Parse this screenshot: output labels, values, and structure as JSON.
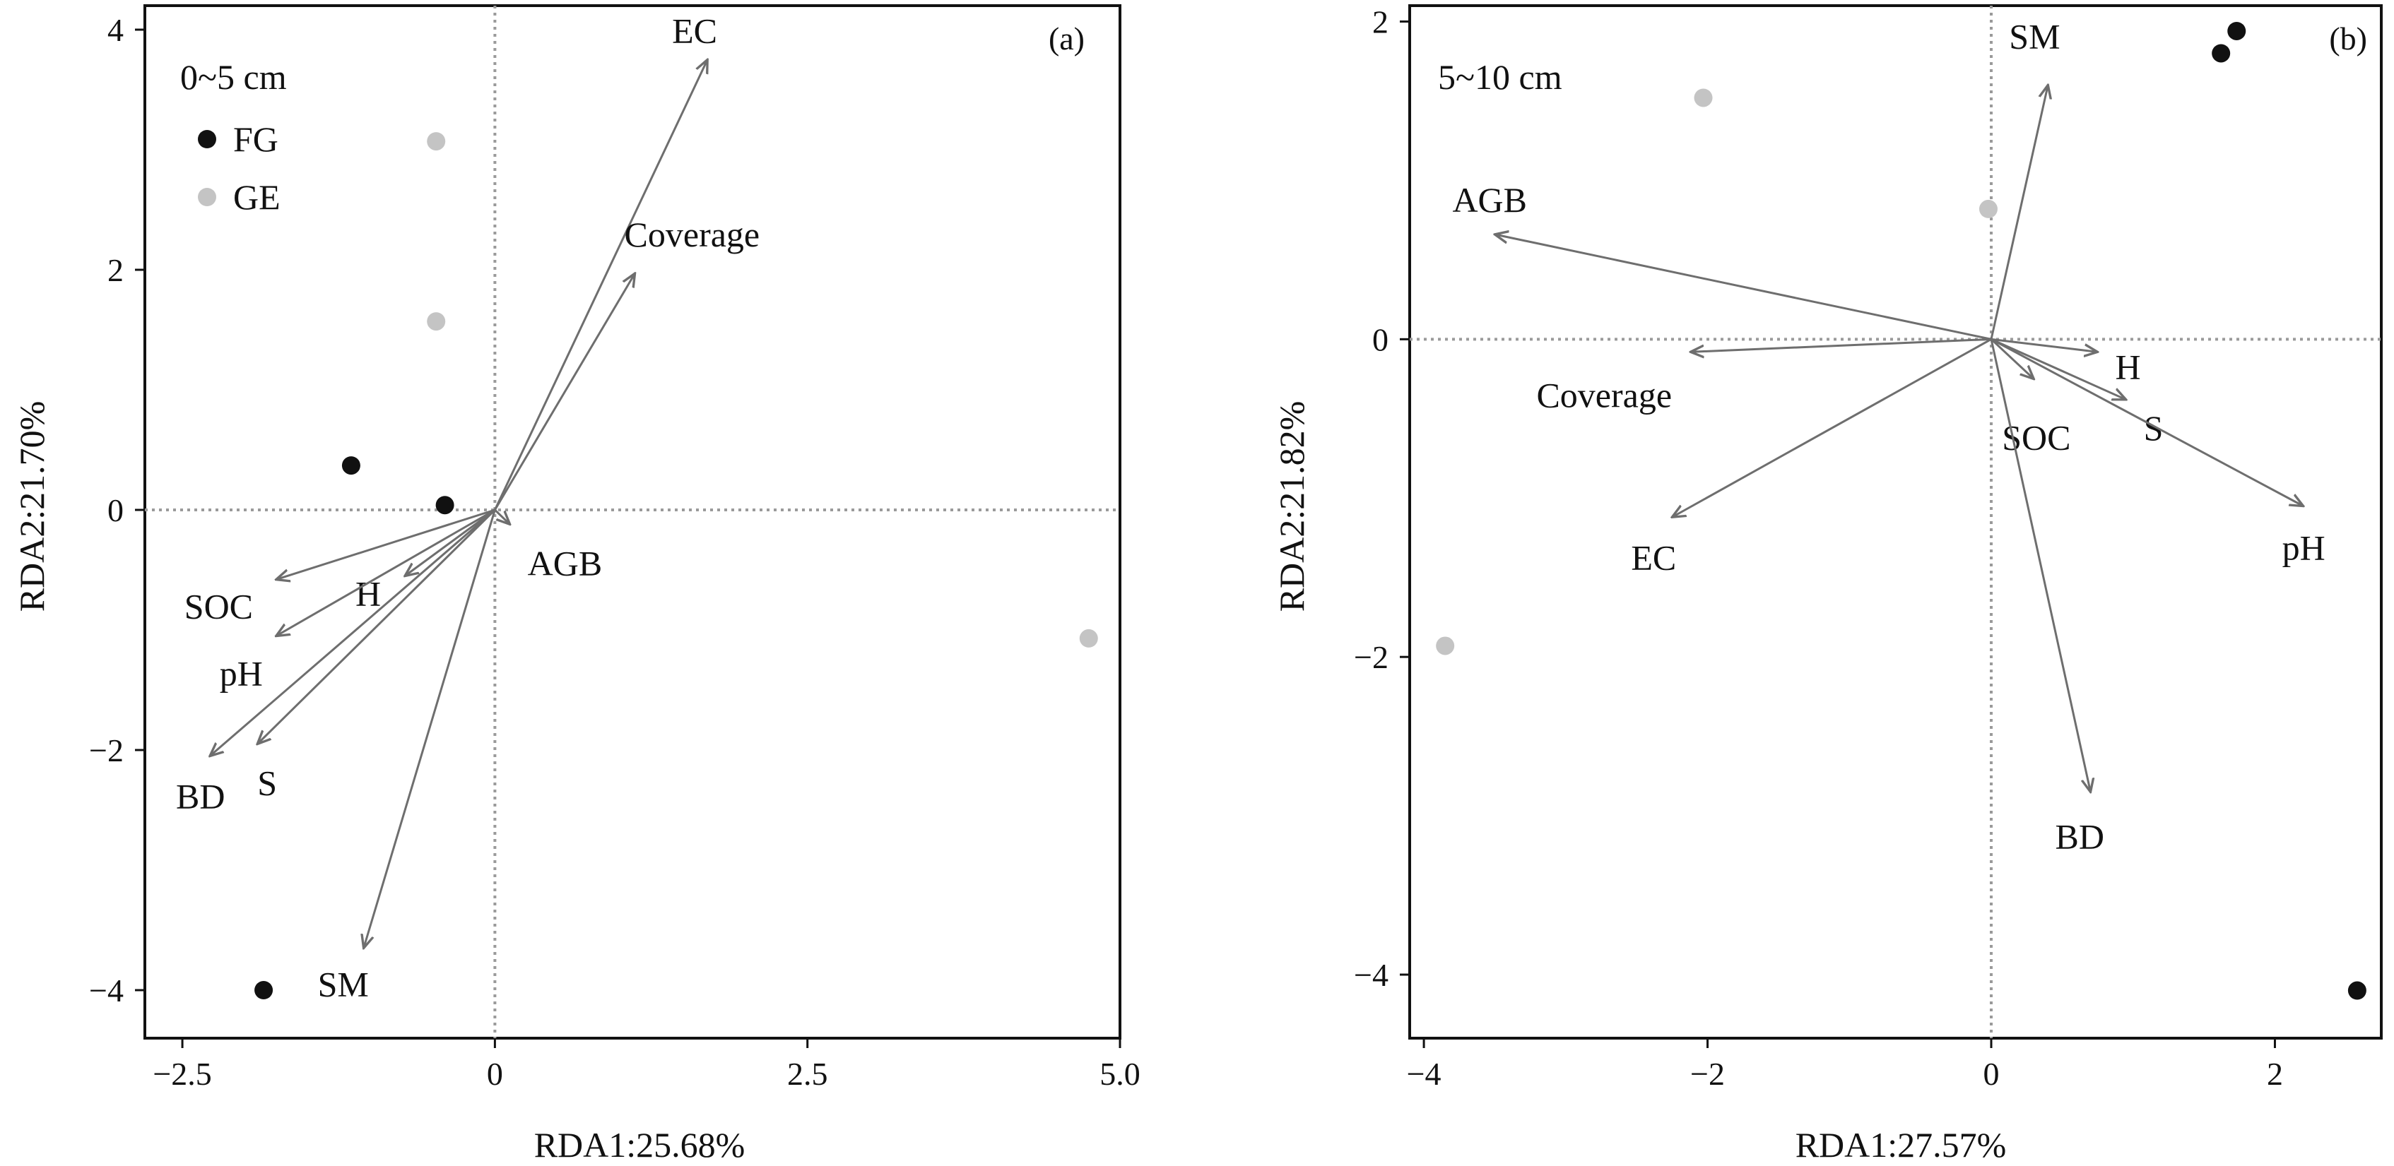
{
  "chart_data": [
    {
      "type": "scatter",
      "panel_label": "(a)",
      "depth_label": "0~5 cm",
      "xlabel": "RDA1:25.68%",
      "ylabel": "RDA2:21.70%",
      "xlim": [
        -2.8,
        5.0
      ],
      "ylim": [
        -4.4,
        4.2
      ],
      "xticks": [
        -2.5,
        0,
        2.5,
        5.0
      ],
      "xtick_labels": [
        "−2.5",
        "0",
        "2.5",
        "5.0"
      ],
      "yticks": [
        -4,
        -2,
        0,
        2,
        4
      ],
      "ytick_labels": [
        "−4",
        "−2",
        "0",
        "2",
        "4"
      ],
      "grid": false,
      "zero_lines": true,
      "legend": {
        "placement": "top-left",
        "entries": [
          {
            "name": "FG",
            "color": "#111111"
          },
          {
            "name": "GE",
            "color": "#c4c4c4"
          }
        ]
      },
      "series": [
        {
          "name": "FG",
          "color": "#111111",
          "points": [
            [
              -1.15,
              0.37
            ],
            [
              -0.4,
              0.04
            ],
            [
              -1.85,
              -4.0
            ]
          ]
        },
        {
          "name": "GE",
          "color": "#c4c4c4",
          "points": [
            [
              -0.47,
              3.07
            ],
            [
              -0.47,
              1.57
            ],
            [
              4.75,
              -1.07
            ]
          ]
        }
      ],
      "vectors": [
        {
          "label": "EC",
          "x": 1.7,
          "y": 3.75
        },
        {
          "label": "Coverage",
          "x": 1.12,
          "y": 1.97
        },
        {
          "label": "AGB",
          "x": 0.12,
          "y": -0.12
        },
        {
          "label": "SOC",
          "x": -1.75,
          "y": -0.58
        },
        {
          "label": "H",
          "x": -0.72,
          "y": -0.55
        },
        {
          "label": "pH",
          "x": -1.75,
          "y": -1.05
        },
        {
          "label": "BD",
          "x": -2.28,
          "y": -2.05
        },
        {
          "label": "S",
          "x": -1.9,
          "y": -1.95
        },
        {
          "label": "SM",
          "x": -1.05,
          "y": -3.65
        }
      ]
    },
    {
      "type": "scatter",
      "panel_label": "(b)",
      "depth_label": "5~10 cm",
      "xlabel": "RDA1:27.57%",
      "ylabel": "RDA2:21.82%",
      "xlim": [
        -4.1,
        2.75
      ],
      "ylim": [
        -4.4,
        2.1
      ],
      "xticks": [
        -4,
        -2,
        0,
        2
      ],
      "xtick_labels": [
        "−4",
        "−2",
        "0",
        "2"
      ],
      "yticks": [
        -4,
        -2,
        0,
        2
      ],
      "ytick_labels": [
        "−4",
        "−2",
        "0",
        "2"
      ],
      "grid": false,
      "zero_lines": true,
      "series": [
        {
          "name": "FG",
          "color": "#111111",
          "points": [
            [
              1.73,
              1.94
            ],
            [
              1.62,
              1.8
            ],
            [
              2.58,
              -4.1
            ]
          ]
        },
        {
          "name": "GE",
          "color": "#c4c4c4",
          "points": [
            [
              -2.03,
              1.52
            ],
            [
              -0.02,
              0.82
            ],
            [
              -3.85,
              -1.93
            ]
          ]
        }
      ],
      "vectors": [
        {
          "label": "SM",
          "x": 0.4,
          "y": 1.6
        },
        {
          "label": "AGB",
          "x": -3.5,
          "y": 0.66
        },
        {
          "label": "Coverage",
          "x": -2.12,
          "y": -0.08
        },
        {
          "label": "H",
          "x": 0.75,
          "y": -0.08
        },
        {
          "label": "S",
          "x": 0.95,
          "y": -0.38
        },
        {
          "label": "SOC",
          "x": 0.3,
          "y": -0.25
        },
        {
          "label": "pH",
          "x": 2.2,
          "y": -1.05
        },
        {
          "label": "EC",
          "x": -2.25,
          "y": -1.12
        },
        {
          "label": "BD",
          "x": 0.7,
          "y": -2.85
        }
      ]
    }
  ]
}
